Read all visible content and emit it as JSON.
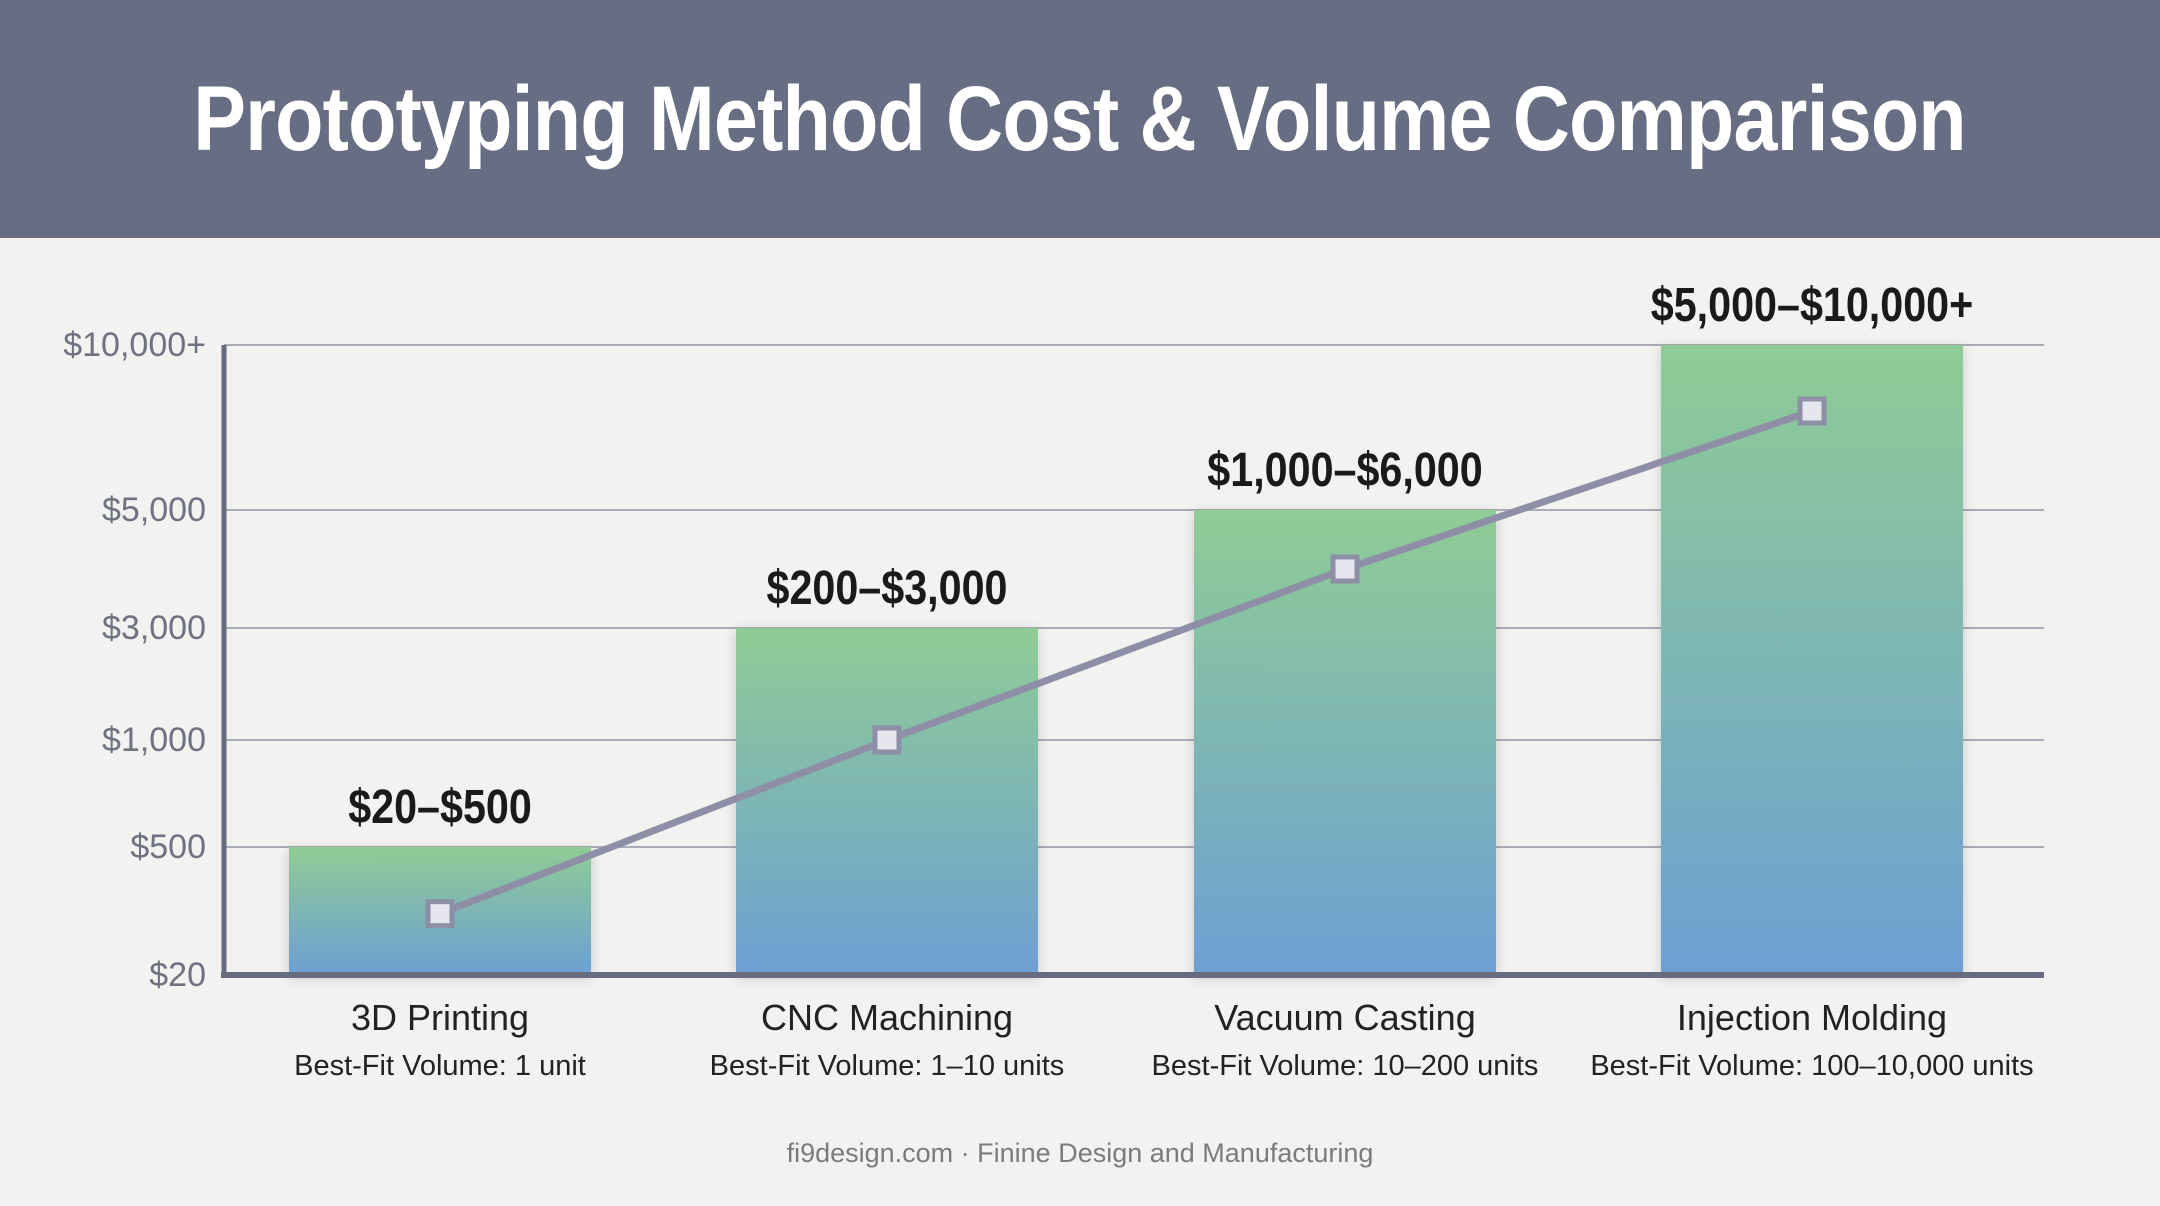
{
  "title": "Prototyping Method Cost & Volume Comparison",
  "footer": "fi9design.com · Finine Design and Manufacturing",
  "colors": {
    "header_bg": "#676d82",
    "bar_top": "#8fcc95",
    "bar_bottom": "#6d9fd3",
    "line": "#8e8ea6",
    "marker_fill": "#e6e6ee",
    "axis": "#676b7e",
    "grid": "#a9abb6"
  },
  "chart_data": {
    "type": "bar",
    "y_scale": "categorical-ticks",
    "y_ticks": [
      "$20",
      "$500",
      "$1,000",
      "$3,000",
      "$5,000",
      "$10,000+"
    ],
    "ylim": [
      "$20",
      "$10,000+"
    ],
    "grid": true,
    "categories": [
      "3D Printing",
      "CNC Machining",
      "Vacuum Casting",
      "Injection Molding"
    ],
    "subtitles": [
      "Best-Fit Volume: 1 unit",
      "Best-Fit Volume: 1–10 units",
      "Best-Fit Volume: 10–200 units",
      "Best-Fit Volume: 100–10,000 units"
    ],
    "bar_labels": [
      "$20–$500",
      "$200–$3,000",
      "$1,000–$6,000",
      "$5,000–$10,000+"
    ],
    "bar_ranges": [
      [
        20,
        500
      ],
      [
        200,
        3000
      ],
      [
        1000,
        6000
      ],
      [
        5000,
        10000
      ]
    ],
    "bar_values": [
      500,
      3000,
      5000,
      10000
    ],
    "line_values": [
      250,
      1000,
      4000,
      8000
    ]
  }
}
